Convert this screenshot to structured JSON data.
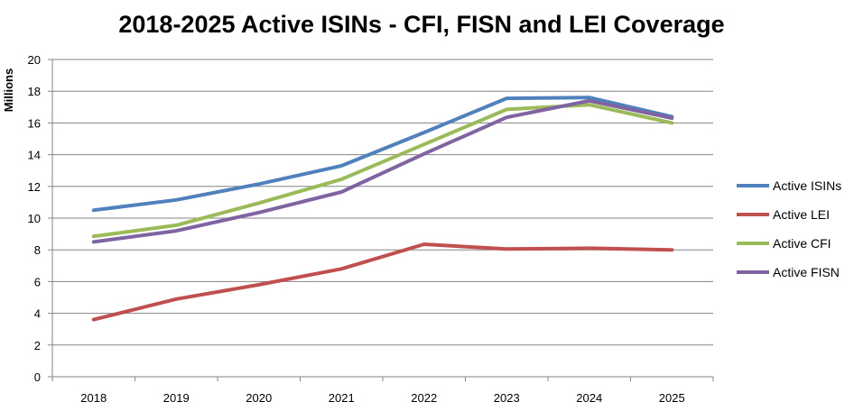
{
  "chart_data": {
    "type": "line",
    "title": "2018-2025 Active ISINs - CFI, FISN and LEI Coverage",
    "ylabel": "Millions",
    "xlabel": "",
    "categories": [
      "2018",
      "2019",
      "2020",
      "2021",
      "2022",
      "2023",
      "2024",
      "2025"
    ],
    "ylim": [
      0,
      20
    ],
    "yticks": [
      0,
      2,
      4,
      6,
      8,
      10,
      12,
      14,
      16,
      18,
      20
    ],
    "grid": true,
    "legend_position": "right",
    "series": [
      {
        "name": "Active ISINs",
        "color": "#4f81bd",
        "values": [
          10.5,
          11.15,
          12.15,
          13.3,
          15.4,
          17.55,
          17.6,
          16.4
        ]
      },
      {
        "name": "Active LEI",
        "color": "#c0504d",
        "values": [
          3.6,
          4.9,
          5.8,
          6.8,
          8.35,
          8.05,
          8.1,
          8.0
        ]
      },
      {
        "name": "Active CFI",
        "color": "#9bbb59",
        "values": [
          8.85,
          9.55,
          10.95,
          12.45,
          14.65,
          16.85,
          17.15,
          16.0
        ]
      },
      {
        "name": "Active FISN",
        "color": "#8064a2",
        "values": [
          8.5,
          9.2,
          10.35,
          11.65,
          14.05,
          16.35,
          17.4,
          16.3
        ]
      }
    ]
  }
}
